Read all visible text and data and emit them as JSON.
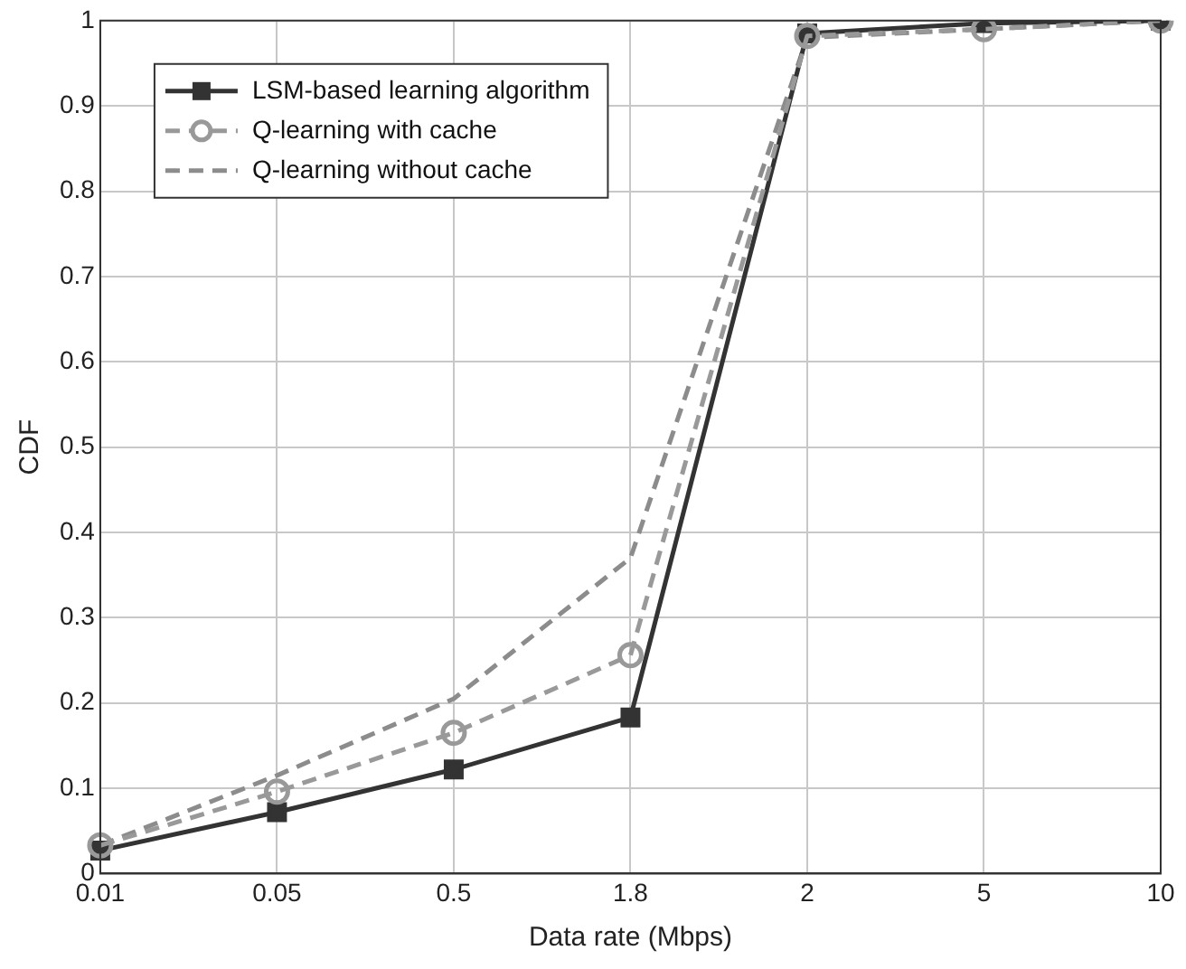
{
  "chart_data": {
    "type": "line",
    "xlabel": "Data rate (Mbps)",
    "ylabel": "CDF",
    "categories": [
      "0.01",
      "0.05",
      "0.5",
      "1.8",
      "2",
      "5",
      "10"
    ],
    "series": [
      {
        "name": "LSM-based learning algorithm",
        "color": "#333333",
        "marker": "square",
        "line_style": "solid",
        "values": [
          0.027,
          0.072,
          0.122,
          0.183,
          0.985,
          0.997,
          1.0
        ]
      },
      {
        "name": "Q-learning with cache",
        "color": "#999999",
        "marker": "circle",
        "line_style": "dashed",
        "values": [
          0.033,
          0.096,
          0.165,
          0.256,
          0.982,
          0.99,
          1.0
        ]
      },
      {
        "name": "Q-learning without cache",
        "color": "#8c8c8c",
        "marker": "none",
        "line_style": "dashed",
        "values": [
          0.033,
          0.115,
          0.205,
          0.37,
          0.98,
          0.99,
          1.0
        ]
      }
    ],
    "ylim": [
      0,
      1
    ],
    "yticks": [
      0,
      0.1,
      0.2,
      0.3,
      0.4,
      0.5,
      0.6,
      0.7,
      0.8,
      0.9,
      1
    ],
    "grid": true,
    "legend": "top left"
  }
}
